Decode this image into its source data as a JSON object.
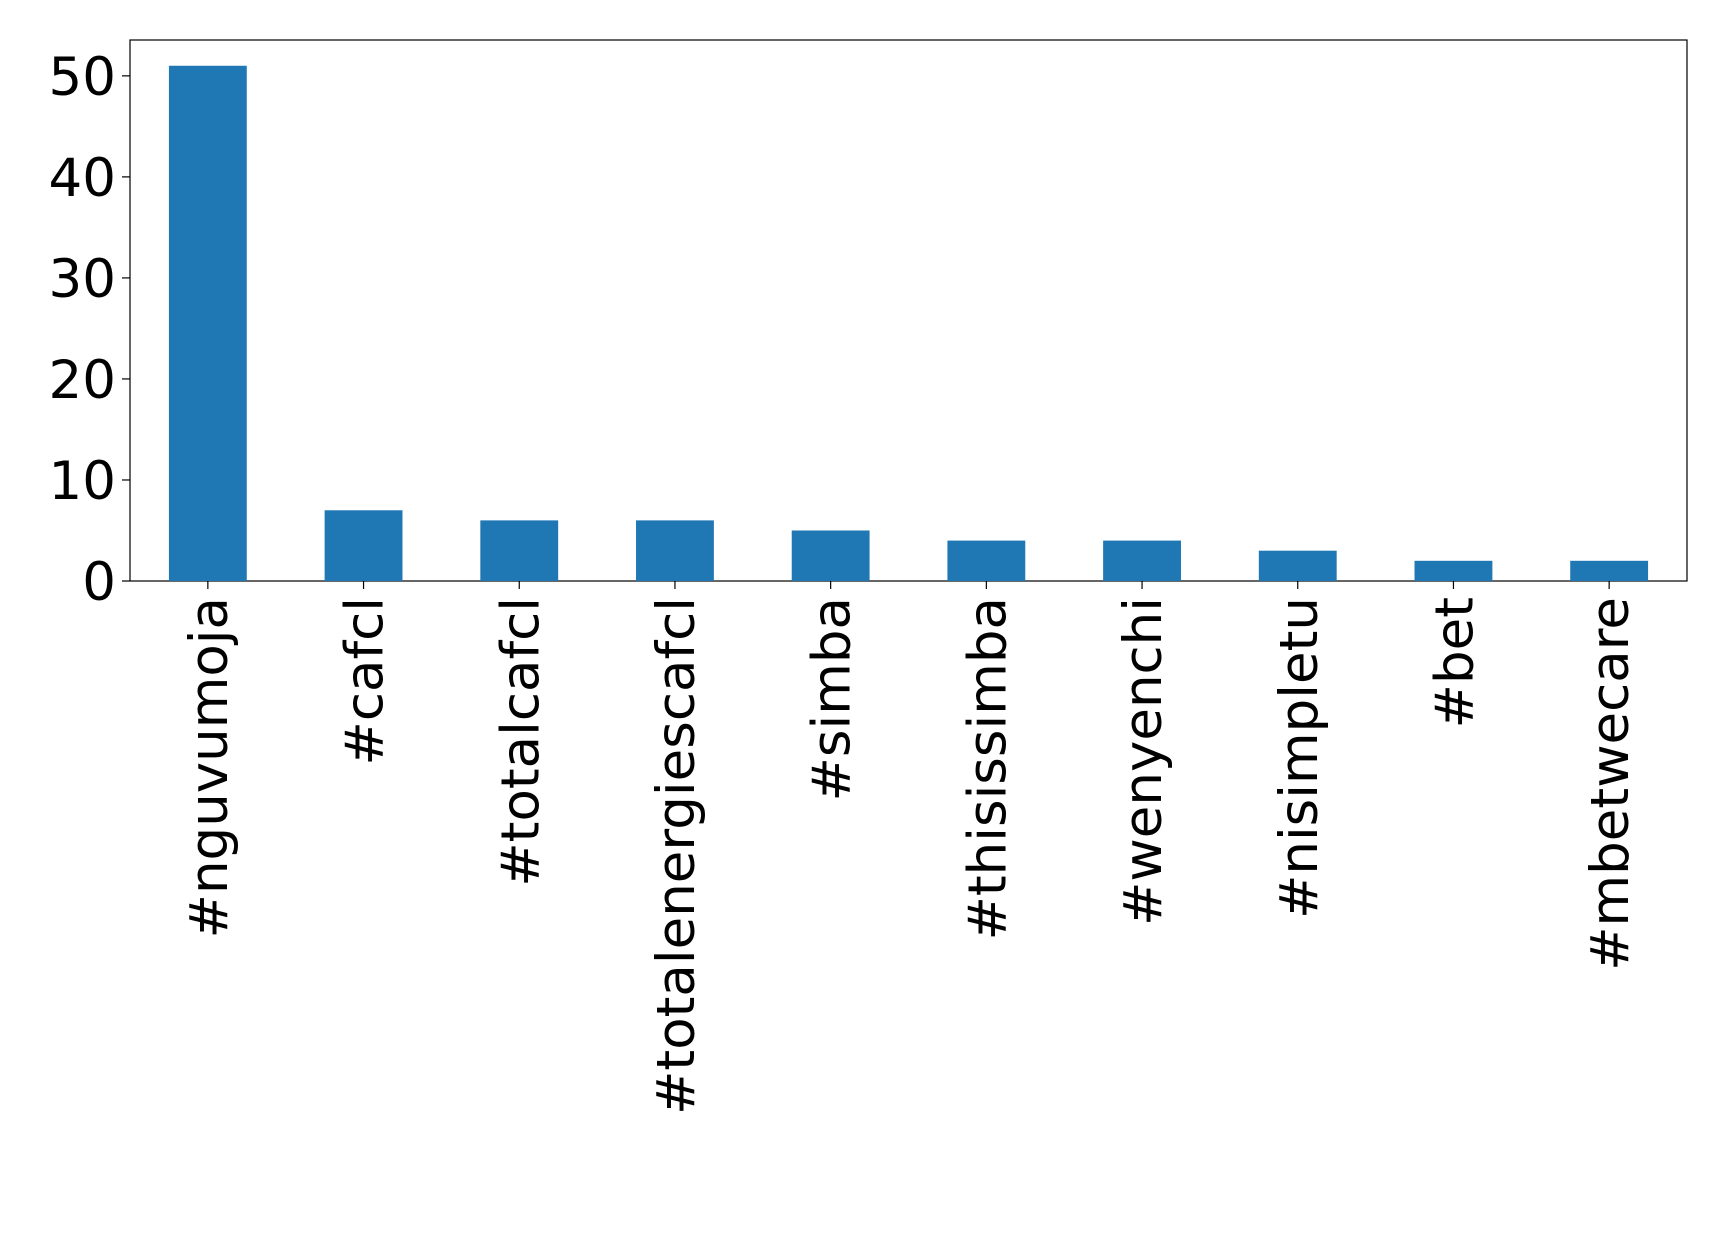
{
  "chart_data": {
    "type": "bar",
    "categories": [
      "#nguvumoja",
      "#cafcl",
      "#totalcafcl",
      "#totalenergiescafcl",
      "#simba",
      "#thisissimba",
      "#wenyenchi",
      "#nisimpletu",
      "#bet",
      "#mbetwecare"
    ],
    "values": [
      51,
      7,
      6,
      6,
      5,
      4,
      4,
      3,
      2,
      2
    ],
    "color": "#1f77b4",
    "ylim": [
      0,
      53.55
    ],
    "yticks": [
      0,
      10,
      20,
      30,
      40,
      50
    ],
    "grid": false
  }
}
